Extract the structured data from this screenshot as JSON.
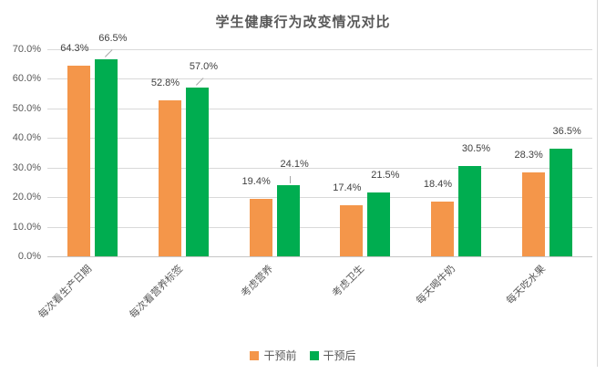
{
  "chart_data": {
    "type": "bar",
    "title": "学生健康行为改变情况对比",
    "categories": [
      "每次看生产日期",
      "每次看营养标签",
      "考虑营养",
      "考虑卫生",
      "每天喝牛奶",
      "每天吃水果"
    ],
    "series": [
      {
        "name": "干预前",
        "color": "#F4964A",
        "values": [
          64.3,
          52.8,
          19.4,
          17.4,
          18.4,
          28.3
        ]
      },
      {
        "name": "干预后",
        "color": "#00AD50",
        "values": [
          66.5,
          57.0,
          24.1,
          21.5,
          30.5,
          36.5
        ]
      }
    ],
    "data_labels": {
      "series": [
        [
          "64.3%",
          "52.8%",
          "19.4%",
          "17.4%",
          "18.4%",
          "28.3%"
        ],
        [
          "66.5%",
          "57.0%",
          "24.1%",
          "21.5%",
          "30.5%",
          "36.5%"
        ]
      ]
    },
    "y_axis": {
      "min": 0,
      "max": 70,
      "step": 10,
      "tick_labels": [
        "0.0%",
        "10.0%",
        "20.0%",
        "30.0%",
        "40.0%",
        "50.0%",
        "60.0%",
        "70.0%"
      ]
    },
    "legend": {
      "position": "bottom",
      "entries": [
        "干预前",
        "干预后"
      ]
    },
    "grid": true,
    "xlabel": "",
    "ylabel": ""
  },
  "colors": {
    "series_before": "#F4964A",
    "series_after": "#00AD50",
    "gridline": "#D9D9D9",
    "axis_line": "#C6C6C6",
    "axis_text": "#595959",
    "data_label_text": "#404040",
    "title_text": "#595959",
    "chart_border": "#D9D9D9",
    "background": "#FFFFFF"
  }
}
